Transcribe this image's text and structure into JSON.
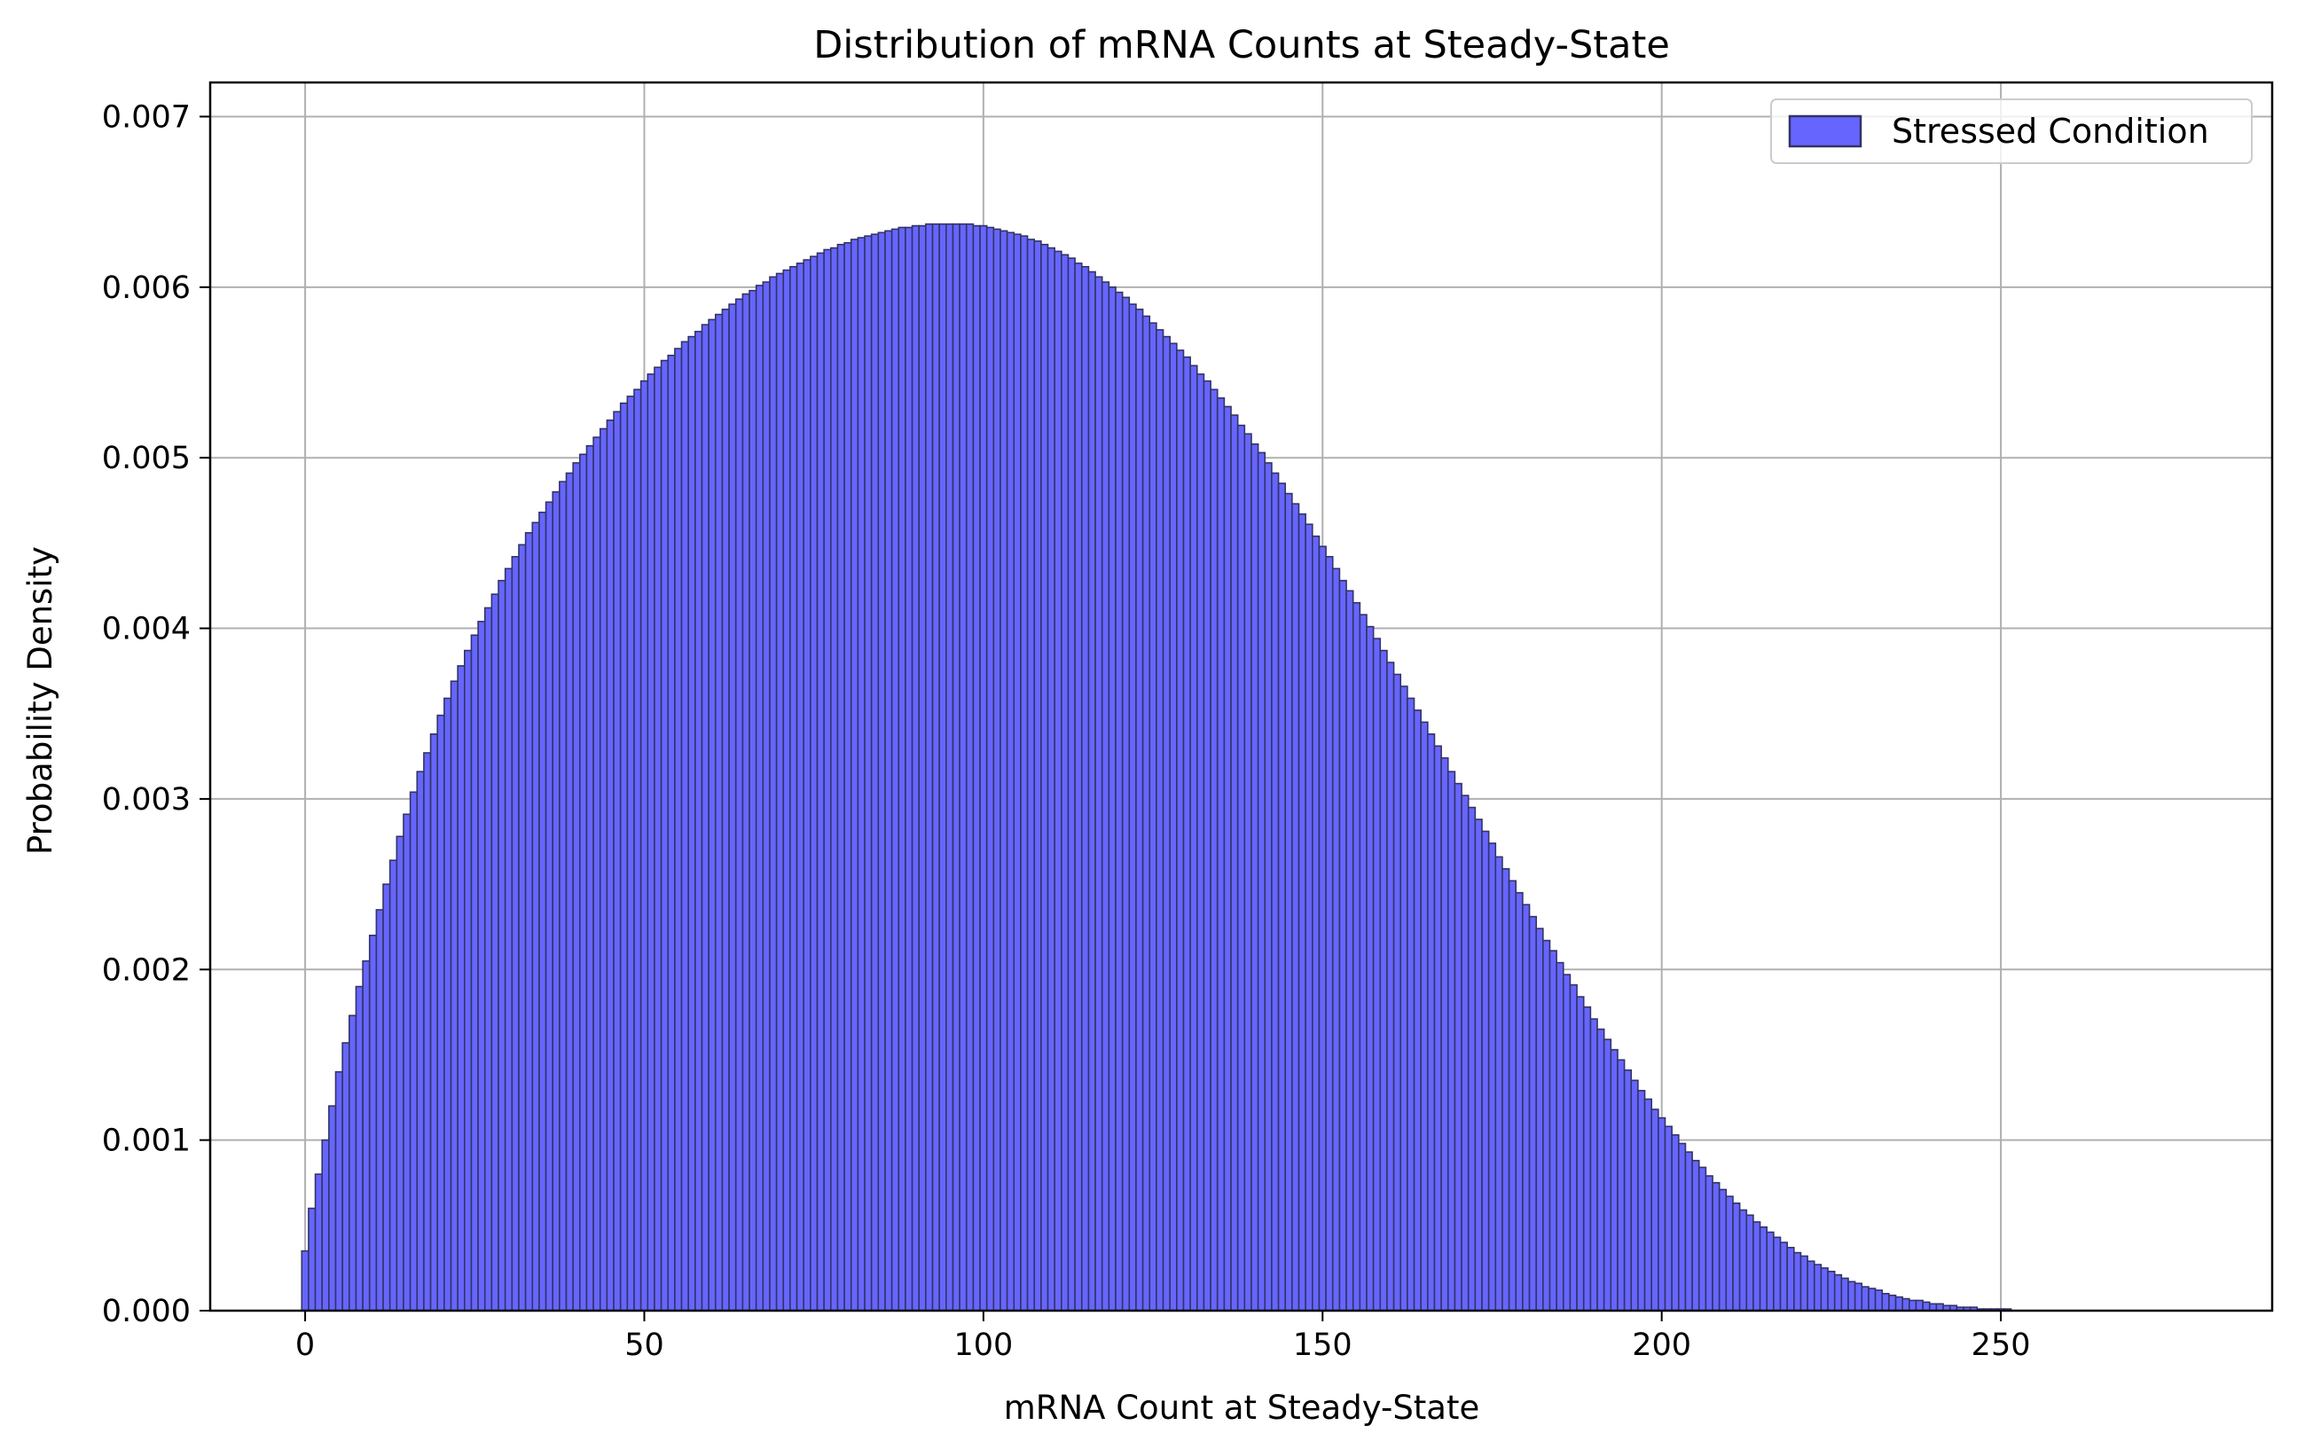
{
  "chart_data": {
    "type": "bar",
    "title": "Distribution of mRNA Counts at Steady-State",
    "xlabel": "mRNA Count at Steady-State",
    "ylabel": "Probability Density",
    "xlim": [
      -14,
      290
    ],
    "ylim": [
      0,
      0.0072
    ],
    "x_ticks": [
      0,
      50,
      100,
      150,
      200,
      250
    ],
    "x_tick_labels": [
      "0",
      "50",
      "100",
      "150",
      "200",
      "250"
    ],
    "y_ticks": [
      0,
      0.001,
      0.002,
      0.003,
      0.004,
      0.005,
      0.006,
      0.007
    ],
    "y_tick_labels": [
      "0.000",
      "0.001",
      "0.002",
      "0.003",
      "0.004",
      "0.005",
      "0.006",
      "0.007"
    ],
    "grid": true,
    "legend_position": "top-right",
    "bin_width": 1,
    "series": [
      {
        "name": "Stressed Condition",
        "color": "#6666ff",
        "edge_color": "#333366",
        "bin_start": 0,
        "values": [
          0.00035,
          0.0006,
          0.0008,
          0.001,
          0.0012,
          0.0014,
          0.00157,
          0.00173,
          0.0019,
          0.00205,
          0.0022,
          0.00235,
          0.0025,
          0.00264,
          0.00278,
          0.00291,
          0.00304,
          0.00316,
          0.00327,
          0.00338,
          0.00349,
          0.00359,
          0.00369,
          0.00378,
          0.00387,
          0.00396,
          0.00404,
          0.00412,
          0.0042,
          0.00428,
          0.00435,
          0.00442,
          0.00449,
          0.00456,
          0.00462,
          0.00468,
          0.00474,
          0.0048,
          0.00486,
          0.00491,
          0.00497,
          0.00502,
          0.00507,
          0.00512,
          0.00517,
          0.00522,
          0.00527,
          0.00532,
          0.00536,
          0.0054,
          0.00545,
          0.00549,
          0.00553,
          0.00557,
          0.0056,
          0.00564,
          0.00568,
          0.00571,
          0.00574,
          0.00578,
          0.00581,
          0.00584,
          0.00587,
          0.0059,
          0.00593,
          0.00596,
          0.00598,
          0.00601,
          0.00603,
          0.00606,
          0.00608,
          0.0061,
          0.00612,
          0.00614,
          0.00616,
          0.00618,
          0.0062,
          0.00622,
          0.00623,
          0.00625,
          0.00626,
          0.00628,
          0.00629,
          0.0063,
          0.00631,
          0.00632,
          0.00633,
          0.00634,
          0.00635,
          0.00635,
          0.00636,
          0.00636,
          0.00637,
          0.00637,
          0.00637,
          0.00637,
          0.00637,
          0.00637,
          0.00637,
          0.00636,
          0.00636,
          0.00635,
          0.00634,
          0.00633,
          0.00632,
          0.00631,
          0.0063,
          0.00628,
          0.00627,
          0.00625,
          0.00623,
          0.00621,
          0.00619,
          0.00617,
          0.00614,
          0.00612,
          0.00609,
          0.00606,
          0.00603,
          0.006,
          0.00597,
          0.00594,
          0.0059,
          0.00587,
          0.00583,
          0.00579,
          0.00575,
          0.00571,
          0.00567,
          0.00563,
          0.00559,
          0.00554,
          0.00549,
          0.00545,
          0.0054,
          0.00535,
          0.0053,
          0.00525,
          0.00519,
          0.00514,
          0.00508,
          0.00503,
          0.00497,
          0.00491,
          0.00485,
          0.00479,
          0.00473,
          0.00467,
          0.00461,
          0.00454,
          0.00448,
          0.00442,
          0.00435,
          0.00428,
          0.00422,
          0.00415,
          0.00408,
          0.00401,
          0.00394,
          0.00387,
          0.0038,
          0.00373,
          0.00366,
          0.00359,
          0.00352,
          0.00345,
          0.00338,
          0.00331,
          0.00324,
          0.00316,
          0.00309,
          0.00302,
          0.00295,
          0.00288,
          0.00281,
          0.00274,
          0.00266,
          0.00259,
          0.00252,
          0.00245,
          0.00238,
          0.00231,
          0.00224,
          0.00217,
          0.00211,
          0.00204,
          0.00197,
          0.00191,
          0.00184,
          0.00178,
          0.00171,
          0.00165,
          0.00159,
          0.00153,
          0.00147,
          0.00141,
          0.00135,
          0.00129,
          0.00124,
          0.00118,
          0.00113,
          0.00108,
          0.00103,
          0.00098,
          0.00093,
          0.00088,
          0.00084,
          0.00079,
          0.00075,
          0.00071,
          0.00067,
          0.00063,
          0.00059,
          0.00056,
          0.00052,
          0.00049,
          0.00046,
          0.00043,
          0.0004,
          0.00037,
          0.00034,
          0.00032,
          0.00029,
          0.00027,
          0.00025,
          0.00023,
          0.00021,
          0.00019,
          0.00017,
          0.00016,
          0.00014,
          0.00013,
          0.00012,
          0.0001,
          9e-05,
          8e-05,
          7e-05,
          6e-05,
          6e-05,
          5e-05,
          4e-05,
          4e-05,
          3e-05,
          3e-05,
          2e-05,
          2e-05,
          2e-05,
          1e-05,
          1e-05,
          1e-05,
          1e-05,
          1e-05,
          0.0,
          0.0,
          0.0,
          0.0,
          0.0,
          0.0,
          0.0,
          0.0,
          0.0,
          0.0,
          0.0,
          0.0,
          0.0,
          0.0,
          0.0,
          0.0,
          0.0,
          0.0,
          0.0,
          0.0,
          0.0,
          0.0,
          0.0
        ]
      }
    ]
  }
}
